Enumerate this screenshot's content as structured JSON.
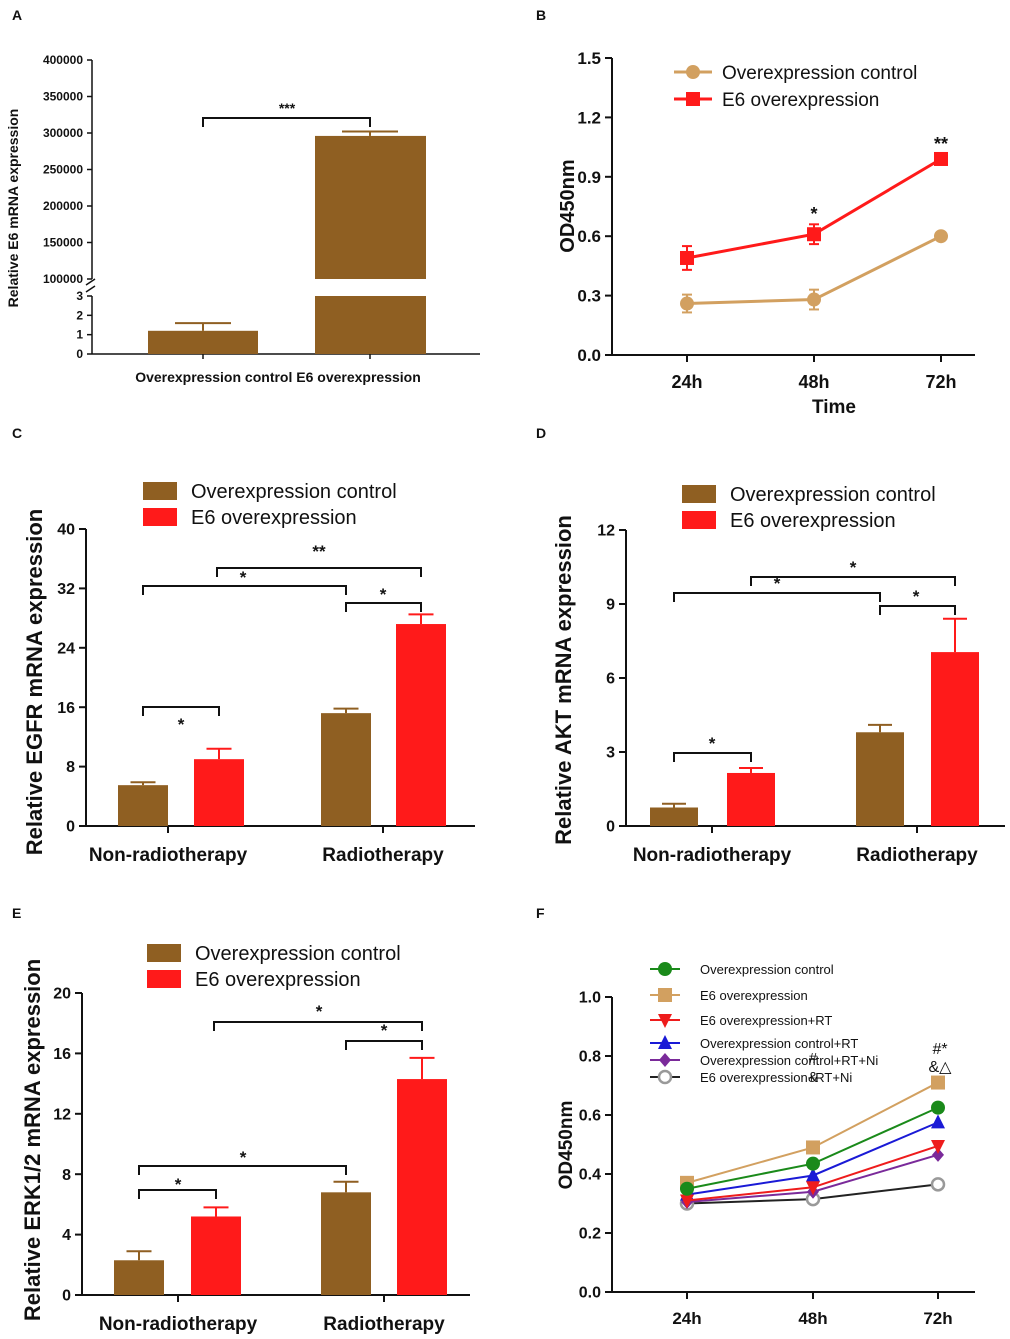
{
  "colors": {
    "brown": "#8F5F22",
    "red": "#FF1A1A",
    "tan": "#D2A060",
    "line_red": "#EE1C1C",
    "green": "#1A8A1A",
    "blue": "#1A1AD6",
    "purple": "#7A2A9A",
    "black": "#222222",
    "gray": "#888888"
  },
  "panels": {
    "A": "A",
    "B": "B",
    "C": "C",
    "D": "D",
    "E": "E",
    "F": "F"
  },
  "chart_data": [
    {
      "id": "A",
      "type": "bar",
      "title": "",
      "ylabel": "Relative E6 mRNA expression",
      "xlabel": "",
      "categories": [
        "Overexpression control",
        "E6 overexpression"
      ],
      "category_label": "Overexpression control E6 overexpression",
      "values": [
        1.2,
        296000
      ],
      "errors": [
        0.4,
        6000
      ],
      "axis_break": {
        "lower": [
          0,
          3
        ],
        "upper": [
          100000,
          400000
        ]
      },
      "lower_ticks": [
        "0",
        "1",
        "2",
        "3"
      ],
      "upper_ticks": [
        "100000",
        "150000",
        "200000",
        "250000",
        "300000",
        "350000",
        "400000"
      ],
      "significance": [
        {
          "label": "***"
        }
      ]
    },
    {
      "id": "B",
      "type": "line",
      "ylabel": "OD450nm",
      "xlabel": "Time",
      "x": [
        "24h",
        "48h",
        "72h"
      ],
      "ylim": [
        0,
        1.5
      ],
      "yticks": [
        "0.0",
        "0.3",
        "0.6",
        "0.9",
        "1.2",
        "1.5"
      ],
      "series": [
        {
          "name": "Overexpression control",
          "values": [
            0.26,
            0.28,
            0.6
          ],
          "errors": [
            0.045,
            0.05,
            0.01
          ]
        },
        {
          "name": "E6 overexpression",
          "values": [
            0.49,
            0.61,
            0.99
          ],
          "errors": [
            0.06,
            0.05,
            0.01
          ]
        }
      ],
      "point_labels": [
        {
          "label": "*"
        },
        {
          "label": "**"
        }
      ]
    },
    {
      "id": "C",
      "type": "bar",
      "ylabel": "Relative EGFR mRNA expression",
      "categories": [
        "Non-radiotherapy",
        "Radiotherapy"
      ],
      "ylim": [
        0,
        40
      ],
      "yticks": [
        "0",
        "8",
        "16",
        "24",
        "32",
        "40"
      ],
      "series": [
        {
          "name": "Overexpression control",
          "values": [
            5.5,
            15.2
          ],
          "errors": [
            0.4,
            0.6
          ]
        },
        {
          "name": "E6 overexpression",
          "values": [
            9.0,
            27.2
          ],
          "errors": [
            1.4,
            1.3
          ]
        }
      ],
      "significance": [
        {
          "label": "*"
        },
        {
          "label": "*"
        },
        {
          "label": "**"
        },
        {
          "label": "*"
        }
      ]
    },
    {
      "id": "D",
      "type": "bar",
      "ylabel": "Relative AKT mRNA expression",
      "categories": [
        "Non-radiotherapy",
        "Radiotherapy"
      ],
      "ylim": [
        0,
        12
      ],
      "yticks": [
        "0",
        "3",
        "6",
        "9",
        "12"
      ],
      "series": [
        {
          "name": "Overexpression control",
          "values": [
            0.75,
            3.8
          ],
          "errors": [
            0.15,
            0.3
          ]
        },
        {
          "name": "E6 overexpression",
          "values": [
            2.15,
            7.05
          ],
          "errors": [
            0.2,
            1.35
          ]
        }
      ],
      "significance": [
        {
          "label": "*"
        },
        {
          "label": "*"
        },
        {
          "label": "*"
        },
        {
          "label": "*"
        }
      ]
    },
    {
      "id": "E",
      "type": "bar",
      "ylabel": "Relative ERK1/2 mRNA expression",
      "categories": [
        "Non-radiotherapy",
        "Radiotherapy"
      ],
      "ylim": [
        0,
        20
      ],
      "yticks": [
        "0",
        "4",
        "8",
        "12",
        "16",
        "20"
      ],
      "series": [
        {
          "name": "Overexpression control",
          "values": [
            2.3,
            6.8
          ],
          "errors": [
            0.6,
            0.7
          ]
        },
        {
          "name": "E6 overexpression",
          "values": [
            5.2,
            14.3
          ],
          "errors": [
            0.6,
            1.4
          ]
        }
      ],
      "significance": [
        {
          "label": "*"
        },
        {
          "label": "*"
        },
        {
          "label": "*"
        },
        {
          "label": "*"
        }
      ]
    },
    {
      "id": "F",
      "type": "line",
      "ylabel": "OD450nm",
      "x": [
        "24h",
        "48h",
        "72h"
      ],
      "ylim": [
        0,
        1.0
      ],
      "yticks": [
        "0.0",
        "0.2",
        "0.4",
        "0.6",
        "0.8",
        "1.0"
      ],
      "series": [
        {
          "name": "Overexpression control",
          "values": [
            0.35,
            0.435,
            0.625
          ],
          "marker": "circle",
          "color": "green"
        },
        {
          "name": "E6 overexpression",
          "values": [
            0.37,
            0.49,
            0.71
          ],
          "marker": "square",
          "color": "tan"
        },
        {
          "name": "E6 overexpression+RT",
          "values": [
            0.31,
            0.355,
            0.495
          ],
          "marker": "tri-down",
          "color": "line_red"
        },
        {
          "name": "Overexpression control+RT",
          "values": [
            0.33,
            0.395,
            0.575
          ],
          "marker": "tri-up",
          "color": "blue"
        },
        {
          "name": "Overexpression control+RT+Ni",
          "values": [
            0.305,
            0.34,
            0.465
          ],
          "marker": "diamond",
          "color": "purple"
        },
        {
          "name": "E6 overexpression+RT+Ni",
          "values": [
            0.3,
            0.315,
            0.365
          ],
          "marker": "open-circle",
          "color": "black"
        }
      ],
      "annotations": [
        {
          "text": "#",
          "x": "48h"
        },
        {
          "text": "&",
          "x": "48h"
        },
        {
          "text": "#*",
          "x": "72h"
        },
        {
          "text": "&△",
          "x": "72h"
        }
      ]
    }
  ]
}
